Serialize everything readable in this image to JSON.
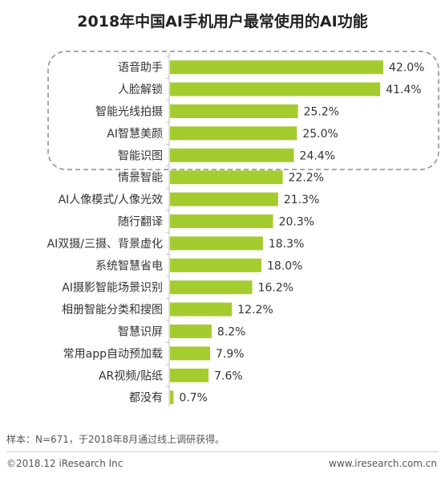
{
  "chart_data": {
    "type": "bar",
    "orientation": "horizontal",
    "title": "2018年中国AI手机用户最常使用的AI功能",
    "categories": [
      "语音助手",
      "人脸解锁",
      "智能光线拍摄",
      "AI智慧美颜",
      "智能识图",
      "情景智能",
      "AI人像模式/人像光效",
      "随行翻译",
      "AI双摄/三摄、背景虚化",
      "系统智慧省电",
      "AI摄影智能场景识别",
      "相册智能分类和搜图",
      "智慧识屏",
      "常用app自动预加载",
      "AR视频/贴纸",
      "都没有"
    ],
    "values": [
      42.0,
      41.4,
      25.2,
      25.0,
      24.4,
      22.2,
      21.3,
      20.3,
      18.3,
      18.0,
      16.2,
      12.2,
      8.2,
      7.9,
      7.6,
      0.7
    ],
    "value_labels": [
      "42.0%",
      "41.4%",
      "25.2%",
      "25.0%",
      "24.4%",
      "22.2%",
      "21.3%",
      "20.3%",
      "18.3%",
      "18.0%",
      "16.2%",
      "12.2%",
      "8.2%",
      "7.9%",
      "7.6%",
      "0.7%"
    ],
    "unit": "%",
    "highlighted_top": 5,
    "bar_color": "#a4cc2e",
    "grid": false,
    "legend": "none"
  },
  "note": "样本：N=671，于2018年8月通过线上调研获得。",
  "footer": {
    "copyright": "©2018.12 iResearch Inc",
    "website": "www.iresearch.com.cn"
  },
  "colors": {
    "bar": "#a4cc2e",
    "axis": "#bfbfbf",
    "highlight_box": "#8c8c8c"
  }
}
